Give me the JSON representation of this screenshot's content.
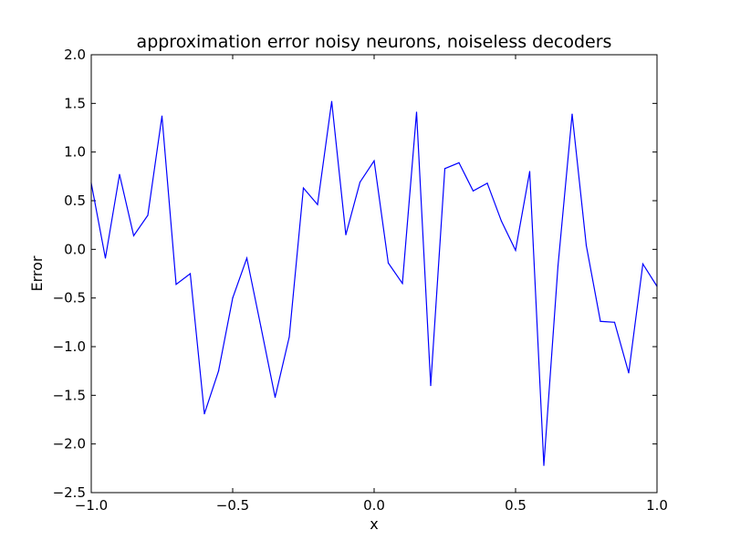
{
  "chart_data": {
    "type": "line",
    "title": "approximation error noisy neurons, noiseless decoders",
    "xlabel": "x",
    "ylabel": "Error",
    "xlim": [
      -1.0,
      1.0
    ],
    "ylim": [
      -2.5,
      2.0
    ],
    "xticks": [
      -1.0,
      -0.5,
      0.0,
      0.5,
      1.0
    ],
    "xtick_labels": [
      "−1.0",
      "−0.5",
      "0.0",
      "0.5",
      "1.0"
    ],
    "yticks": [
      -2.5,
      -2.0,
      -1.5,
      -1.0,
      -0.5,
      0.0,
      0.5,
      1.0,
      1.5,
      2.0
    ],
    "ytick_labels": [
      "−2.5",
      "−2.0",
      "−1.5",
      "−1.0",
      "−0.5",
      "0.0",
      "0.5",
      "1.0",
      "1.5",
      "2.0"
    ],
    "grid": false,
    "legend": "none",
    "series": [
      {
        "color": "#0000ff",
        "x": [
          -1.0,
          -0.95,
          -0.9,
          -0.85,
          -0.8,
          -0.75,
          -0.7,
          -0.65,
          -0.6,
          -0.55,
          -0.5,
          -0.45,
          -0.4,
          -0.35,
          -0.3,
          -0.25,
          -0.2,
          -0.15,
          -0.1,
          -0.05,
          0.0,
          0.05,
          0.1,
          0.15,
          0.2,
          0.25,
          0.3,
          0.35,
          0.4,
          0.45,
          0.5,
          0.55,
          0.6,
          0.65,
          0.7,
          0.75,
          0.8,
          0.85,
          0.9,
          0.95,
          1.0
        ],
        "y": [
          0.68,
          -0.09,
          0.77,
          0.14,
          0.35,
          1.37,
          -0.36,
          -0.25,
          -1.69,
          -1.25,
          -0.5,
          -0.09,
          -0.8,
          -1.52,
          -0.9,
          0.63,
          0.46,
          1.52,
          0.15,
          0.69,
          0.91,
          -0.14,
          -0.35,
          1.41,
          -1.4,
          0.83,
          0.89,
          0.6,
          0.68,
          0.29,
          -0.01,
          0.8,
          -2.22,
          -0.17,
          1.39,
          0.04,
          -0.74,
          -0.75,
          -1.27,
          -0.15,
          -0.38
        ]
      }
    ]
  }
}
